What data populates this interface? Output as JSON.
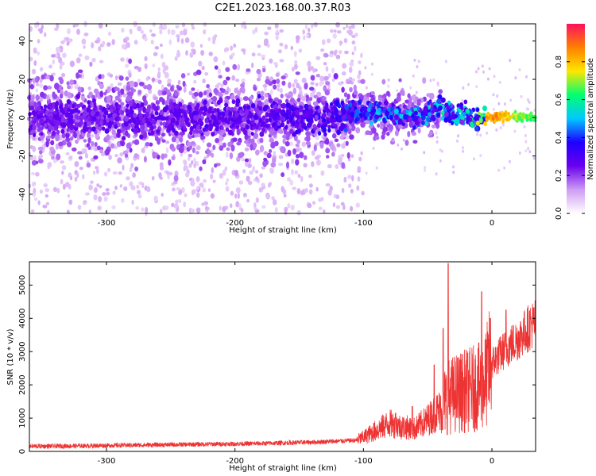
{
  "title": "C2E1.2023.168.00.37.R03",
  "chart_data": [
    {
      "type": "heatmap",
      "xlabel": "Height of straight line (km)",
      "ylabel": "Frequency (Hz)",
      "xlim": [
        -360,
        34
      ],
      "ylim": [
        -50,
        49
      ],
      "xticks": [
        -300,
        -200,
        -100,
        0
      ],
      "yticks": [
        -40,
        -20,
        0,
        20,
        40
      ],
      "colorbar": {
        "label": "Normalized spectral amplitude",
        "range": [
          0,
          1
        ],
        "ticks": [
          0.0,
          0.2,
          0.4,
          0.6,
          0.8
        ],
        "colormap": [
          "#ffffff",
          "#cf9cf4",
          "#6a00ee",
          "#1e00ff",
          "#00c8ff",
          "#00ff70",
          "#ffe600",
          "#ff8000",
          "#ff1060"
        ]
      },
      "ridge": {
        "description": "Spectral energy concentrated near 0 Hz; diffuse scatter left of -100 km, increasingly coherent toward 0 km",
        "profile_x": [
          -360,
          -300,
          -200,
          -120,
          -100,
          -80,
          -60,
          -40,
          -20,
          0,
          10,
          20,
          34
        ],
        "profile_center_hz": [
          0,
          0,
          0,
          1,
          3,
          2,
          1,
          4,
          1,
          0,
          1,
          0,
          0
        ],
        "profile_peak_amplitude": [
          0.22,
          0.25,
          0.25,
          0.35,
          0.45,
          0.5,
          0.5,
          0.55,
          0.55,
          0.95,
          0.85,
          0.75,
          0.7
        ]
      }
    },
    {
      "type": "line",
      "xlabel": "Height of straight line (km)",
      "ylabel": "SNR (10 * v/v)",
      "xlim": [
        -360,
        34
      ],
      "ylim": [
        0,
        5700
      ],
      "xticks": [
        -300,
        -200,
        -100,
        0
      ],
      "yticks": [
        0,
        1000,
        2000,
        3000,
        4000,
        5000
      ],
      "color": "#ee3333",
      "series": [
        {
          "x": [
            -360,
            -340,
            -320,
            -300,
            -280,
            -260,
            -240,
            -220,
            -200,
            -180,
            -160,
            -140,
            -120,
            -105,
            -100,
            -90,
            -80,
            -70,
            -60,
            -50,
            -40,
            -35,
            -30,
            -20,
            -10,
            -5,
            0,
            10,
            20,
            30,
            34
          ],
          "values": [
            150,
            150,
            160,
            170,
            180,
            190,
            200,
            210,
            220,
            230,
            250,
            270,
            300,
            330,
            400,
            600,
            800,
            700,
            650,
            900,
            1200,
            1500,
            1600,
            1700,
            1800,
            2000,
            2600,
            3000,
            3300,
            3700,
            3800
          ]
        }
      ],
      "spikes": [
        {
          "x": -34,
          "y": 5650
        },
        {
          "x": -8,
          "y": 4800
        },
        {
          "x": 11,
          "y": 4250
        },
        {
          "x": -38,
          "y": 3700
        },
        {
          "x": -45,
          "y": 2600
        },
        {
          "x": -75,
          "y": 1150
        },
        {
          "x": -62,
          "y": 1350
        }
      ]
    }
  ]
}
